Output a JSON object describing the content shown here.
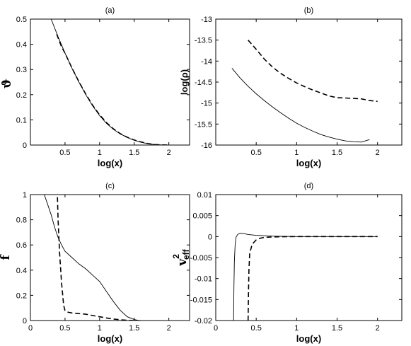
{
  "chart_data": [
    {
      "type": "line",
      "title": "(a)",
      "xlabel": "log(x)",
      "ylabel": "ϑ",
      "xlim": [
        0,
        2.3
      ],
      "ylim": [
        0,
        0.5
      ],
      "xticks": [
        "0.5",
        "1",
        "1.5",
        "2"
      ],
      "yticks": [
        "0",
        "0.1",
        "0.2",
        "0.3",
        "0.4",
        "0.5"
      ],
      "series": [
        {
          "style": "solid",
          "x": [
            0.3,
            0.4,
            0.5,
            0.6,
            0.7,
            0.8,
            0.9,
            1.0,
            1.1,
            1.2,
            1.3,
            1.4,
            1.5,
            1.6,
            1.7,
            1.8,
            1.9,
            2.0
          ],
          "y": [
            0.5,
            0.43,
            0.365,
            0.305,
            0.25,
            0.2,
            0.155,
            0.117,
            0.086,
            0.062,
            0.044,
            0.03,
            0.019,
            0.011,
            0.005,
            0.002,
            0.0005,
            0.0
          ]
        },
        {
          "style": "dashed",
          "x": [
            0.38,
            0.45,
            0.5,
            0.6,
            0.7,
            0.8,
            0.9,
            1.0,
            1.1,
            1.2,
            1.3,
            1.4,
            1.5,
            1.6,
            1.7,
            1.8,
            1.9,
            2.0
          ],
          "y": [
            0.44,
            0.39,
            0.365,
            0.306,
            0.252,
            0.202,
            0.158,
            0.12,
            0.089,
            0.064,
            0.045,
            0.031,
            0.02,
            0.012,
            0.006,
            0.002,
            0.0005,
            0.0
          ]
        }
      ]
    },
    {
      "type": "line",
      "title": "(b)",
      "xlabel": "log(x)",
      "ylabel": "log(ρ)",
      "xlim": [
        0,
        2.3
      ],
      "ylim": [
        -16,
        -13
      ],
      "xticks": [
        "0.5",
        "1",
        "1.5",
        "2"
      ],
      "yticks": [
        "-16",
        "-15.5",
        "-15",
        "-14.5",
        "-14",
        "-13.5",
        "-13"
      ],
      "series": [
        {
          "style": "solid",
          "x": [
            0.2,
            0.3,
            0.4,
            0.5,
            0.6,
            0.7,
            0.8,
            0.9,
            1.0,
            1.1,
            1.2,
            1.3,
            1.4,
            1.5,
            1.6,
            1.7,
            1.8,
            1.9
          ],
          "y": [
            -14.17,
            -14.4,
            -14.6,
            -14.78,
            -14.94,
            -15.09,
            -15.23,
            -15.36,
            -15.48,
            -15.58,
            -15.67,
            -15.75,
            -15.81,
            -15.86,
            -15.9,
            -15.92,
            -15.93,
            -15.87
          ]
        },
        {
          "style": "dashed",
          "x": [
            0.4,
            0.5,
            0.6,
            0.7,
            0.8,
            0.9,
            1.0,
            1.1,
            1.2,
            1.3,
            1.4,
            1.5,
            1.6,
            1.7,
            1.8,
            1.9,
            2.0
          ],
          "y": [
            -13.5,
            -13.72,
            -13.95,
            -14.14,
            -14.29,
            -14.41,
            -14.52,
            -14.61,
            -14.69,
            -14.76,
            -14.83,
            -14.87,
            -14.88,
            -14.89,
            -14.9,
            -14.94,
            -14.96
          ]
        }
      ]
    },
    {
      "type": "line",
      "title": "(c)",
      "xlabel": "log(x)",
      "ylabel": "f",
      "xlim": [
        0,
        2.3
      ],
      "ylim": [
        0,
        1
      ],
      "xticks": [
        "0",
        "0.5",
        "1",
        "1.5",
        "2"
      ],
      "yticks": [
        "0",
        "0.2",
        "0.4",
        "0.6",
        "0.8",
        "1"
      ],
      "series": [
        {
          "style": "solid",
          "x": [
            0.2,
            0.25,
            0.3,
            0.35,
            0.4,
            0.45,
            0.5,
            0.6,
            0.7,
            0.8,
            0.9,
            1.0,
            1.1,
            1.2,
            1.3,
            1.4,
            1.5,
            1.55,
            1.6,
            2.0
          ],
          "y": [
            1.0,
            0.92,
            0.84,
            0.74,
            0.66,
            0.6,
            0.55,
            0.5,
            0.45,
            0.41,
            0.36,
            0.31,
            0.23,
            0.15,
            0.08,
            0.03,
            0.008,
            0.002,
            0.0,
            0.0
          ]
        },
        {
          "style": "dashed",
          "x": [
            0.39,
            0.4,
            0.42,
            0.45,
            0.48,
            0.5,
            0.52,
            0.55,
            0.6,
            0.7,
            0.8,
            0.9,
            1.0,
            1.1,
            1.2,
            1.3,
            1.4,
            1.5
          ],
          "y": [
            0.98,
            0.8,
            0.55,
            0.3,
            0.12,
            0.08,
            0.07,
            0.065,
            0.06,
            0.055,
            0.05,
            0.04,
            0.03,
            0.02,
            0.012,
            0.006,
            0.002,
            0.0
          ]
        }
      ]
    },
    {
      "type": "line",
      "title": "(d)",
      "xlabel": "log(x)",
      "ylabel": "v",
      "ylabel_sup": "2",
      "ylabel_sub": "eff",
      "xlim": [
        0,
        2.3
      ],
      "ylim": [
        -0.02,
        0.01
      ],
      "xticks": [
        "0",
        "0.5",
        "1",
        "1.5",
        "2"
      ],
      "yticks": [
        "-0.02",
        "-0.015",
        "-0.01",
        "-0.005",
        "0",
        "0.005",
        "0.01"
      ],
      "series": [
        {
          "style": "solid",
          "x": [
            0.22,
            0.225,
            0.23,
            0.24,
            0.25,
            0.27,
            0.3,
            0.35,
            0.4,
            0.5,
            0.6,
            0.7,
            0.8,
            1.0,
            1.5,
            2.0
          ],
          "y": [
            -0.02,
            -0.012,
            -0.006,
            -0.002,
            -0.0002,
            0.0005,
            0.0008,
            0.0007,
            0.0005,
            0.0003,
            0.0002,
            0.0001,
            5e-05,
            0.0,
            0.0,
            0.0
          ]
        },
        {
          "style": "dashed",
          "x": [
            0.4,
            0.405,
            0.41,
            0.42,
            0.45,
            0.5,
            0.55,
            0.6,
            0.7,
            0.8,
            1.0,
            1.5,
            2.0
          ],
          "y": [
            -0.02,
            -0.013,
            -0.008,
            -0.004,
            -0.0018,
            -0.0008,
            -0.0004,
            -0.0002,
            -0.0001,
            -5e-05,
            0.0,
            0.0,
            0.0
          ]
        }
      ]
    }
  ]
}
